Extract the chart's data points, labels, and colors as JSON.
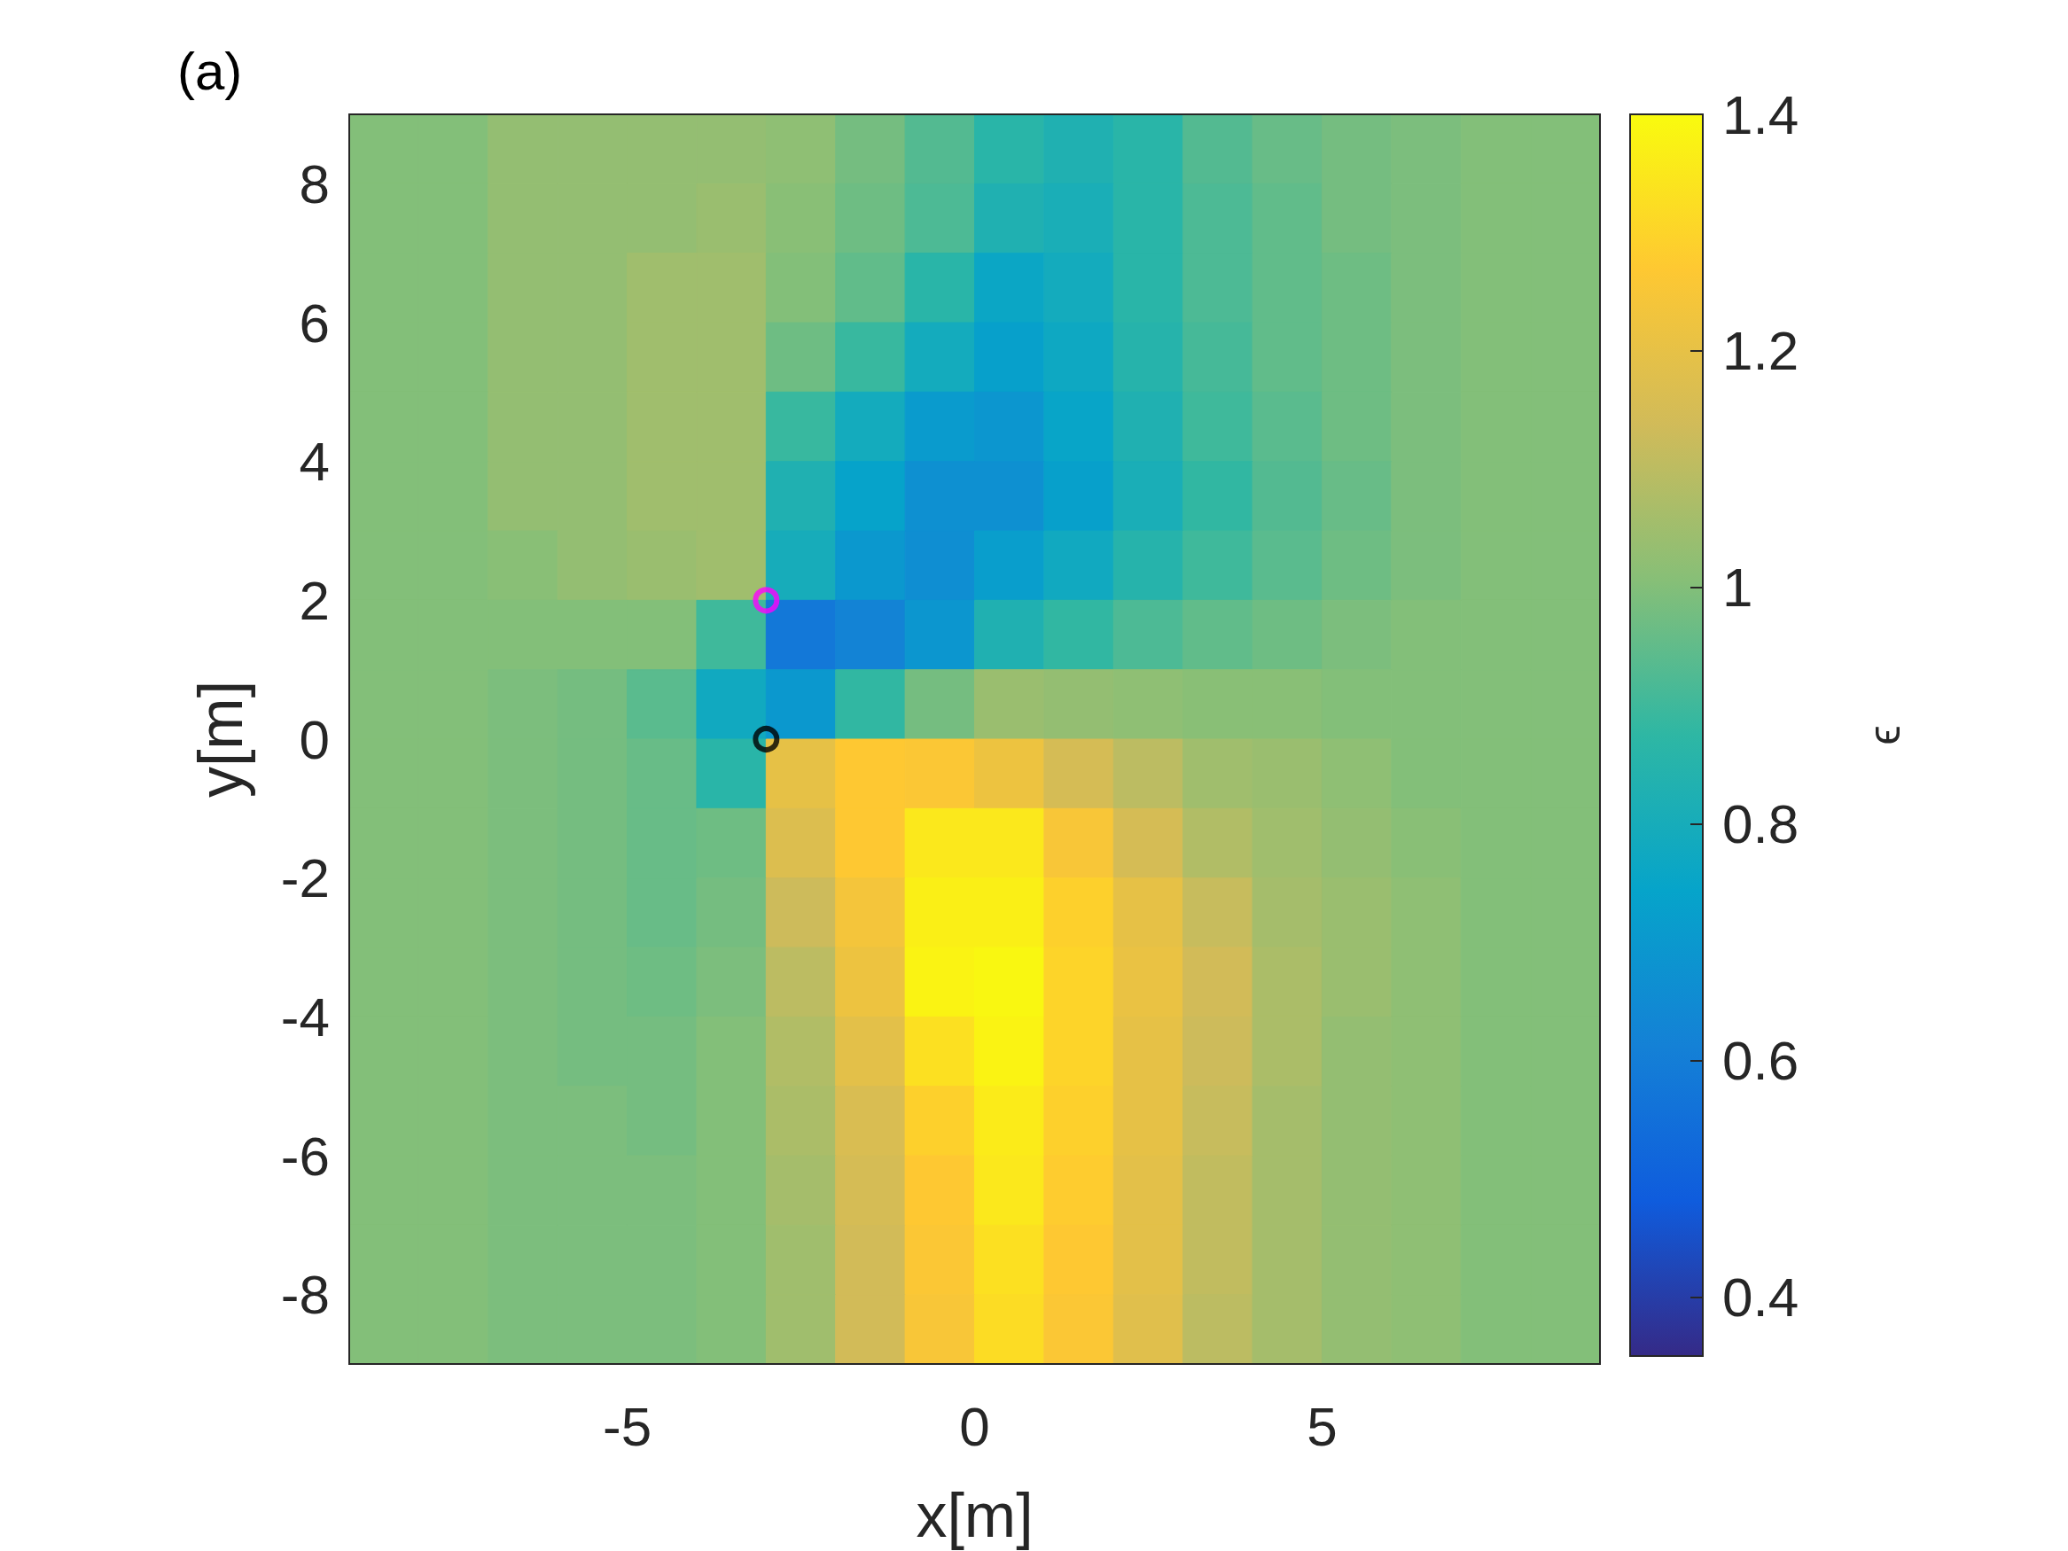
{
  "chart_data": {
    "type": "heatmap",
    "title": "(a)",
    "xlabel": "x[m]",
    "ylabel": "y[m]",
    "clabel": "ϵ",
    "cells": [
      [
        1,
        1,
        1.03,
        1.03,
        1.03,
        1.03,
        1.02,
        0.98,
        0.93,
        0.86,
        0.83,
        0.86,
        0.93,
        0.96,
        0.98,
        0.99,
        1,
        1
      ],
      [
        1,
        1,
        1.03,
        1.03,
        1.03,
        1.04,
        1.01,
        0.97,
        0.92,
        0.83,
        0.81,
        0.86,
        0.92,
        0.95,
        0.98,
        0.99,
        1,
        1
      ],
      [
        1,
        1,
        1.03,
        1.03,
        1.05,
        1.05,
        1,
        0.95,
        0.86,
        0.76,
        0.79,
        0.86,
        0.92,
        0.95,
        0.97,
        0.99,
        1,
        1
      ],
      [
        1,
        1,
        1.03,
        1.03,
        1.05,
        1.05,
        0.97,
        0.89,
        0.79,
        0.73,
        0.77,
        0.85,
        0.91,
        0.95,
        0.97,
        0.99,
        1,
        1
      ],
      [
        1,
        1,
        1.03,
        1.03,
        1.05,
        1.05,
        0.89,
        0.79,
        0.71,
        0.69,
        0.75,
        0.83,
        0.9,
        0.94,
        0.97,
        0.99,
        1,
        1
      ],
      [
        1,
        1,
        1.03,
        1.03,
        1.05,
        1.05,
        0.83,
        0.74,
        0.67,
        0.67,
        0.73,
        0.81,
        0.88,
        0.93,
        0.96,
        0.99,
        1,
        1
      ],
      [
        1,
        1,
        1.01,
        1.03,
        1.04,
        1.05,
        0.8,
        0.7,
        0.66,
        0.72,
        0.78,
        0.85,
        0.9,
        0.94,
        0.97,
        0.99,
        1,
        1
      ],
      [
        1,
        1,
        1,
        1,
        1,
        0.9,
        0.58,
        0.62,
        0.69,
        0.83,
        0.88,
        0.92,
        0.95,
        0.97,
        0.99,
        1,
        1,
        1
      ],
      [
        1,
        1,
        0.99,
        0.98,
        0.94,
        0.78,
        0.7,
        0.88,
        0.98,
        1.04,
        1.03,
        1.02,
        1.01,
        1.01,
        1,
        1,
        1,
        1
      ],
      [
        1,
        1,
        0.99,
        0.98,
        0.96,
        0.86,
        1.2,
        1.27,
        1.26,
        1.22,
        1.15,
        1.1,
        1.05,
        1.04,
        1.02,
        1,
        1,
        1
      ],
      [
        1,
        1,
        0.99,
        0.98,
        0.96,
        0.97,
        1.17,
        1.27,
        1.35,
        1.35,
        1.25,
        1.15,
        1.08,
        1.05,
        1.03,
        1.01,
        1,
        1
      ],
      [
        1,
        1,
        0.99,
        0.98,
        0.96,
        0.98,
        1.13,
        1.24,
        1.37,
        1.37,
        1.29,
        1.2,
        1.12,
        1.06,
        1.04,
        1.02,
        1,
        1
      ],
      [
        1,
        1,
        0.99,
        0.98,
        0.97,
        0.99,
        1.1,
        1.22,
        1.38,
        1.39,
        1.3,
        1.21,
        1.14,
        1.07,
        1.04,
        1.02,
        1,
        1
      ],
      [
        1,
        1,
        0.99,
        0.98,
        0.98,
        1,
        1.08,
        1.19,
        1.33,
        1.38,
        1.3,
        1.2,
        1.13,
        1.07,
        1.03,
        1.02,
        1,
        1
      ],
      [
        1,
        1,
        0.99,
        0.99,
        0.98,
        1,
        1.07,
        1.16,
        1.29,
        1.36,
        1.29,
        1.2,
        1.12,
        1.06,
        1.03,
        1.02,
        1,
        1
      ],
      [
        1,
        1,
        0.99,
        0.99,
        0.99,
        1,
        1.06,
        1.15,
        1.27,
        1.35,
        1.28,
        1.19,
        1.11,
        1.06,
        1.03,
        1.02,
        1,
        1
      ],
      [
        1,
        1,
        0.99,
        0.99,
        0.99,
        1,
        1.05,
        1.14,
        1.26,
        1.33,
        1.27,
        1.19,
        1.11,
        1.06,
        1.03,
        1.02,
        1,
        1
      ],
      [
        1,
        1,
        0.99,
        0.99,
        0.99,
        1,
        1.05,
        1.14,
        1.25,
        1.32,
        1.26,
        1.18,
        1.1,
        1.06,
        1.03,
        1.02,
        1,
        1
      ]
    ],
    "xlim": [
      -9,
      9
    ],
    "ylim": [
      -9,
      9
    ],
    "xticks": [
      -5,
      0,
      5
    ],
    "yticks": [
      -8,
      -6,
      -4,
      -2,
      0,
      2,
      4,
      6,
      8
    ],
    "clim": [
      0.35,
      1.4
    ],
    "cticks": [
      0.4,
      0.6,
      0.8,
      1,
      1.2,
      1.4
    ],
    "series": [
      {
        "type": "scatter",
        "color": "#ff00ff",
        "x": [
          -3
        ],
        "values": [
          2
        ]
      },
      {
        "type": "scatter",
        "color": "#000000",
        "x": [
          -3
        ],
        "values": [
          0
        ]
      }
    ],
    "marker": "circle"
  }
}
